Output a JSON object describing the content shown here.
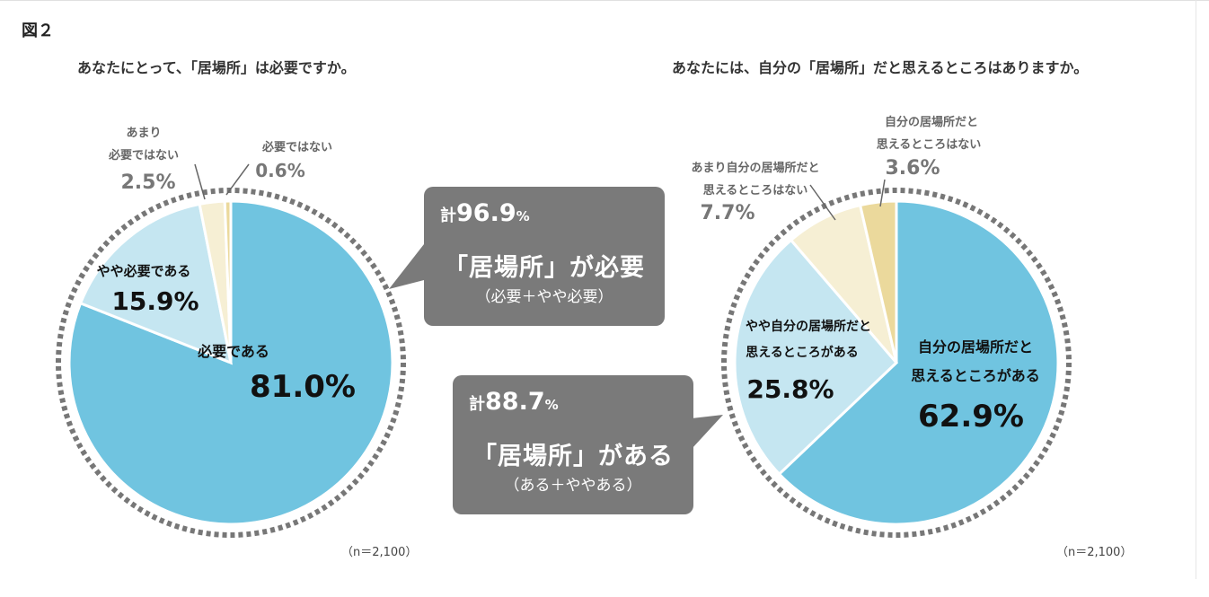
{
  "figure_label": "図２",
  "accent_colors": {
    "blue_main": "#70c4e0",
    "blue_light": "#c5e6f1",
    "cream": "#f6efd4",
    "beige": "#ebd99c",
    "callout_bg": "#7a7a7a",
    "dotted_ring": "#777777"
  },
  "callouts": [
    {
      "prefix": "計",
      "value": "96.9",
      "unit": "%",
      "main": "「居場所」が必要",
      "sub": "（必要＋やや必要）"
    },
    {
      "prefix": "計",
      "value": "88.7",
      "unit": "%",
      "main": "「居場所」がある",
      "sub": "（ある＋ややある）"
    }
  ],
  "chart_data": [
    {
      "type": "pie",
      "title": "あなたにとって、「居場所」は必要ですか。",
      "n_label": "（n＝2,100）",
      "slices": [
        {
          "label": "必要である",
          "value": 81.0,
          "value_label": "81.0%",
          "color": "#70c4e0"
        },
        {
          "label": "やや必要である",
          "value": 15.9,
          "value_label": "15.9%",
          "color": "#c5e6f1"
        },
        {
          "label": "あまり 必要ではない",
          "label_lines": [
            "あまり",
            "必要ではない"
          ],
          "value": 2.5,
          "value_label": "2.5%",
          "color": "#f6efd4"
        },
        {
          "label": "必要ではない",
          "value": 0.6,
          "value_label": "0.6%",
          "color": "#ebd99c"
        }
      ]
    },
    {
      "type": "pie",
      "title": "あなたには、自分の「居場所」だと思えるところはありますか。",
      "n_label": "（n＝2,100）",
      "slices": [
        {
          "label": "自分の居場所だと 思えるところがある",
          "label_lines": [
            "自分の居場所だと",
            "思えるところがある"
          ],
          "value": 62.9,
          "value_label": "62.9%",
          "color": "#70c4e0"
        },
        {
          "label": "やや自分の居場所だと 思えるところがある",
          "label_lines": [
            "やや自分の居場所だと",
            "思えるところがある"
          ],
          "value": 25.8,
          "value_label": "25.8%",
          "color": "#c5e6f1"
        },
        {
          "label": "あまり自分の居場所だと 思えるところはない",
          "label_lines": [
            "あまり自分の居場所だと",
            "思えるところはない"
          ],
          "value": 7.7,
          "value_label": "7.7%",
          "color": "#f6efd4"
        },
        {
          "label": "自分の居場所だと 思えるところはない",
          "label_lines": [
            "自分の居場所だと",
            "思えるところはない"
          ],
          "value": 3.6,
          "value_label": "3.6%",
          "color": "#ebd99c"
        }
      ]
    }
  ]
}
